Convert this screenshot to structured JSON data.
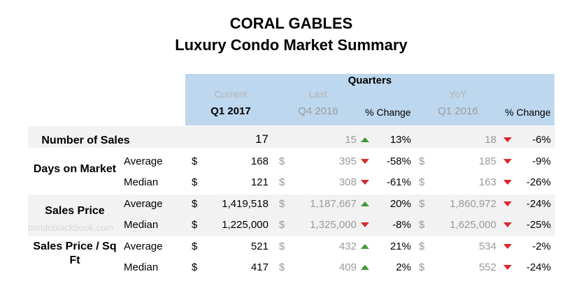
{
  "title": {
    "line1": "CORAL GABLES",
    "line2": "Luxury Condo Market Summary"
  },
  "header": {
    "quarters": "Quarters",
    "current_label": "Current",
    "last_label": "Last",
    "yoy_label": "YoY",
    "current_quarter": "Q1 2017",
    "last_quarter": "Q4 2016",
    "yoy_quarter": "Q1 2016",
    "pct_change_1": "% Change",
    "pct_change_2": "% Change"
  },
  "colors": {
    "header_bg": "#bdd7ee",
    "row_shade": "#f2f2f2",
    "up": "#3a9a3a",
    "down": "#d9262a"
  },
  "watermark": "condoblackbook.com",
  "sections": {
    "sales": {
      "label": "Number of Sales"
    },
    "dom": {
      "label": "Days on Market"
    },
    "price": {
      "label": "Sales Price"
    },
    "sqft": {
      "label": "Sales Price / Sq Ft"
    }
  },
  "rows": [
    {
      "sub": "",
      "cur_sign": "",
      "cur": "17",
      "last_sign": "",
      "last": "15",
      "qoq_dir": "up",
      "qoq": "13%",
      "yoy_sign": "",
      "yoy_val": "18",
      "yoy_dir": "down",
      "yoy": "-6%"
    },
    {
      "sub": "Average",
      "cur_sign": "$",
      "cur": "168",
      "last_sign": "$",
      "last": "395",
      "qoq_dir": "down",
      "qoq": "-58%",
      "yoy_sign": "$",
      "yoy_val": "185",
      "yoy_dir": "down",
      "yoy": "-9%"
    },
    {
      "sub": "Median",
      "cur_sign": "$",
      "cur": "121",
      "last_sign": "$",
      "last": "308",
      "qoq_dir": "down",
      "qoq": "-61%",
      "yoy_sign": "$",
      "yoy_val": "163",
      "yoy_dir": "down",
      "yoy": "-26%"
    },
    {
      "sub": "Average",
      "cur_sign": "$",
      "cur": "1,419,518",
      "last_sign": "$",
      "last": "1,187,667",
      "qoq_dir": "up",
      "qoq": "20%",
      "yoy_sign": "$",
      "yoy_val": "1,860,972",
      "yoy_dir": "down",
      "yoy": "-24%"
    },
    {
      "sub": "Median",
      "cur_sign": "$",
      "cur": "1,225,000",
      "last_sign": "$",
      "last": "1,325,000",
      "qoq_dir": "down",
      "qoq": "-8%",
      "yoy_sign": "$",
      "yoy_val": "1,625,000",
      "yoy_dir": "down",
      "yoy": "-25%"
    },
    {
      "sub": "Average",
      "cur_sign": "$",
      "cur": "521",
      "last_sign": "$",
      "last": "432",
      "qoq_dir": "up",
      "qoq": "21%",
      "yoy_sign": "$",
      "yoy_val": "534",
      "yoy_dir": "down",
      "yoy": "-2%"
    },
    {
      "sub": "Median",
      "cur_sign": "$",
      "cur": "417",
      "last_sign": "$",
      "last": "409",
      "qoq_dir": "up",
      "qoq": "2%",
      "yoy_sign": "$",
      "yoy_val": "552",
      "yoy_dir": "down",
      "yoy": "-24%"
    }
  ]
}
